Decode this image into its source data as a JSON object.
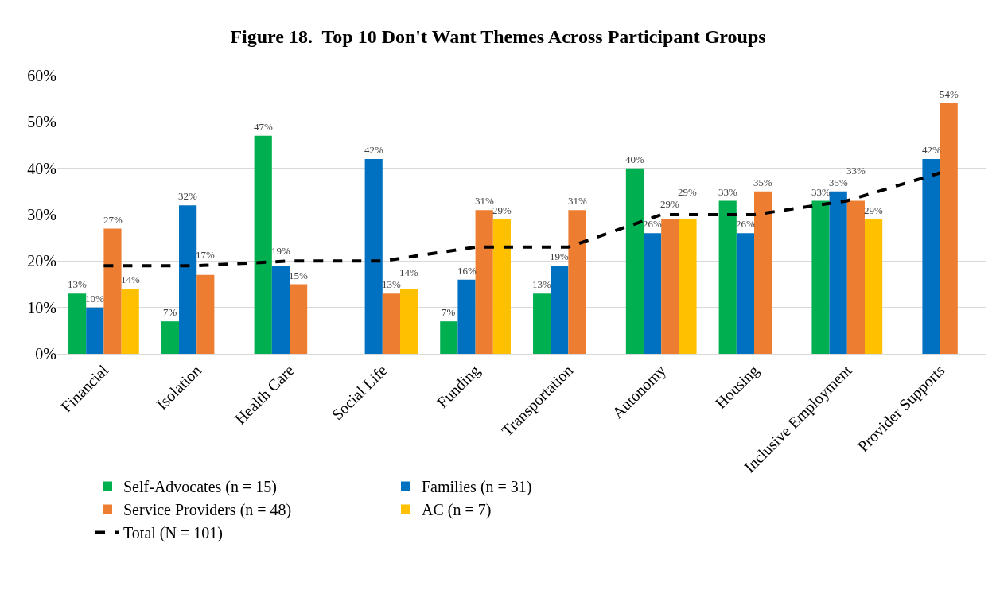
{
  "chart_data": {
    "type": "bar",
    "title": "Figure 18.  Top 10 Don't Want Themes Across Participant Groups",
    "categories": [
      "Financial",
      "Isolation",
      "Health Care",
      "Social Life",
      "Funding",
      "Transportation",
      "Autonomy",
      "Housing",
      "Inclusive Employment",
      "Provider Supports"
    ],
    "series": [
      {
        "name": "Self-Advocates (n = 15)",
        "color": "#00b050",
        "values": [
          13,
          7,
          47,
          null,
          7,
          13,
          40,
          33,
          33,
          null
        ],
        "value_labels": [
          "13%",
          "7%",
          "47%",
          null,
          "7%",
          "13%",
          "40%",
          "33%",
          "33%",
          null
        ]
      },
      {
        "name": "Families (n = 31)",
        "color": "#0070c0",
        "values": [
          10,
          32,
          19,
          42,
          16,
          19,
          26,
          26,
          35,
          42
        ],
        "value_labels": [
          "10%",
          "32%",
          "19%",
          "42%",
          "16%",
          "19%",
          "26%",
          "26%",
          "35%",
          "42%"
        ]
      },
      {
        "name": "Service Providers (n = 48)",
        "color": "#ed7d31",
        "values": [
          27,
          17,
          15,
          13,
          31,
          31,
          29,
          35,
          33,
          54
        ],
        "value_labels": [
          "27%",
          "17%",
          "15%",
          "13%",
          "31%",
          "31%",
          "29%",
          "35%",
          "33%",
          "54%"
        ]
      },
      {
        "name": "AC (n = 7)",
        "color": "#ffc000",
        "values": [
          14,
          null,
          null,
          14,
          29,
          null,
          29,
          null,
          29,
          null
        ],
        "value_labels": [
          "14%",
          null,
          null,
          "14%",
          "29%",
          null,
          "29%",
          null,
          "29%",
          null
        ]
      },
      {
        "name": "Total (N = 101)",
        "type": "line",
        "color": "#000000",
        "line_style": "dashed",
        "values": [
          19,
          19,
          20,
          20,
          23,
          23,
          30,
          30,
          33,
          39
        ]
      }
    ],
    "ylim": [
      0,
      60
    ],
    "yticks": [
      {
        "value": 0,
        "label": "0%"
      },
      {
        "value": 10,
        "label": "10%"
      },
      {
        "value": 20,
        "label": "20%"
      },
      {
        "value": 30,
        "label": "30%"
      },
      {
        "value": 40,
        "label": "40%"
      },
      {
        "value": 50,
        "label": "50%"
      },
      {
        "value": 60,
        "label": "60%"
      }
    ],
    "grid": "y",
    "legend": "bottom"
  }
}
